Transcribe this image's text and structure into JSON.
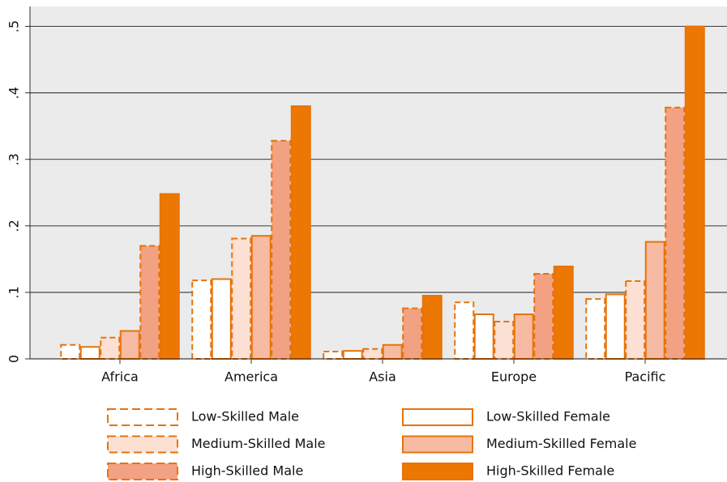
{
  "chart_data": {
    "type": "bar",
    "categories": [
      "Africa",
      "America",
      "Asia",
      "Europe",
      "Pacific"
    ],
    "series": [
      {
        "name": "Low-Skilled Male",
        "color": "#ffffff",
        "dashed": true,
        "values": [
          0.021,
          0.118,
          0.011,
          0.085,
          0.09
        ]
      },
      {
        "name": "Low-Skilled Female",
        "color": "#ffffff",
        "dashed": false,
        "values": [
          0.018,
          0.12,
          0.012,
          0.067,
          0.097
        ]
      },
      {
        "name": "Medium-Skilled Male",
        "color": "#fbe0d3",
        "dashed": true,
        "values": [
          0.032,
          0.181,
          0.015,
          0.056,
          0.117
        ]
      },
      {
        "name": "Medium-Skilled Female",
        "color": "#f6bba2",
        "dashed": false,
        "values": [
          0.042,
          0.185,
          0.021,
          0.067,
          0.176
        ]
      },
      {
        "name": "High-Skilled Male",
        "color": "#f2a283",
        "dashed": true,
        "values": [
          0.17,
          0.328,
          0.076,
          0.128,
          0.378
        ]
      },
      {
        "name": "High-Skilled Female",
        "color": "#ed7703",
        "dashed": false,
        "values": [
          0.248,
          0.38,
          0.095,
          0.139,
          0.5
        ]
      }
    ],
    "stroke": "#e8730a",
    "ylim": [
      0,
      0.53
    ],
    "yticks": [
      0,
      {
        "value": 0.1,
        "label": ".1"
      },
      {
        "value": 0.2,
        "label": ".2"
      },
      {
        "value": 0.3,
        "label": ".3"
      },
      {
        "value": 0.4,
        "label": ".4"
      },
      {
        "value": 0.5,
        "label": ".5"
      }
    ],
    "grid": true
  }
}
